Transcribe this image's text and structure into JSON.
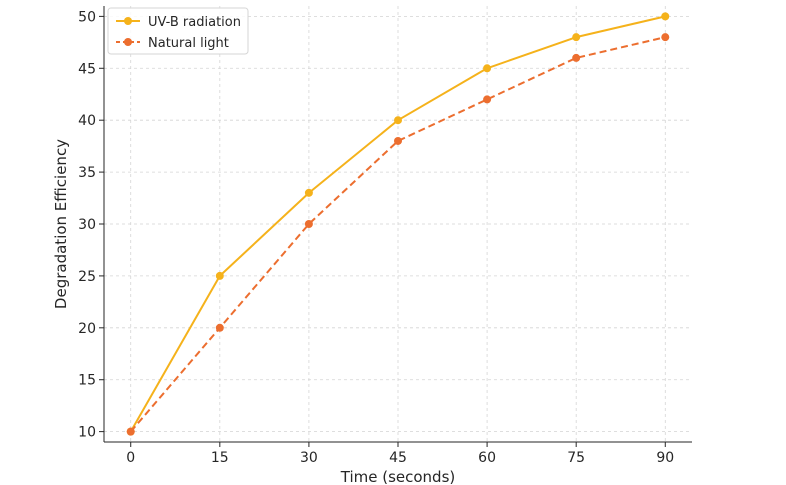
{
  "chart_data": {
    "type": "line",
    "title": "",
    "xlabel": "Time (seconds)",
    "ylabel": "Degradation Efficiency",
    "x": [
      0,
      15,
      30,
      45,
      60,
      75,
      90
    ],
    "xticks": [
      "0",
      "15",
      "30",
      "45",
      "60",
      "75",
      "90"
    ],
    "yticks": [
      "10",
      "15",
      "20",
      "25",
      "30",
      "35",
      "40",
      "45",
      "50"
    ],
    "xlim": [
      -4.5,
      94.5
    ],
    "ylim": [
      9,
      51
    ],
    "grid": true,
    "legend": "top-left",
    "series": [
      {
        "name": "UV-B radiation",
        "values": [
          10,
          25,
          33,
          40,
          45,
          48,
          50
        ],
        "color": "#f5b21b",
        "style": "solid",
        "marker": "circle"
      },
      {
        "name": "Natural light",
        "values": [
          10,
          20,
          30,
          38,
          42,
          46,
          48
        ],
        "color": "#ec6e2f",
        "style": "dashed",
        "marker": "circle"
      }
    ]
  }
}
